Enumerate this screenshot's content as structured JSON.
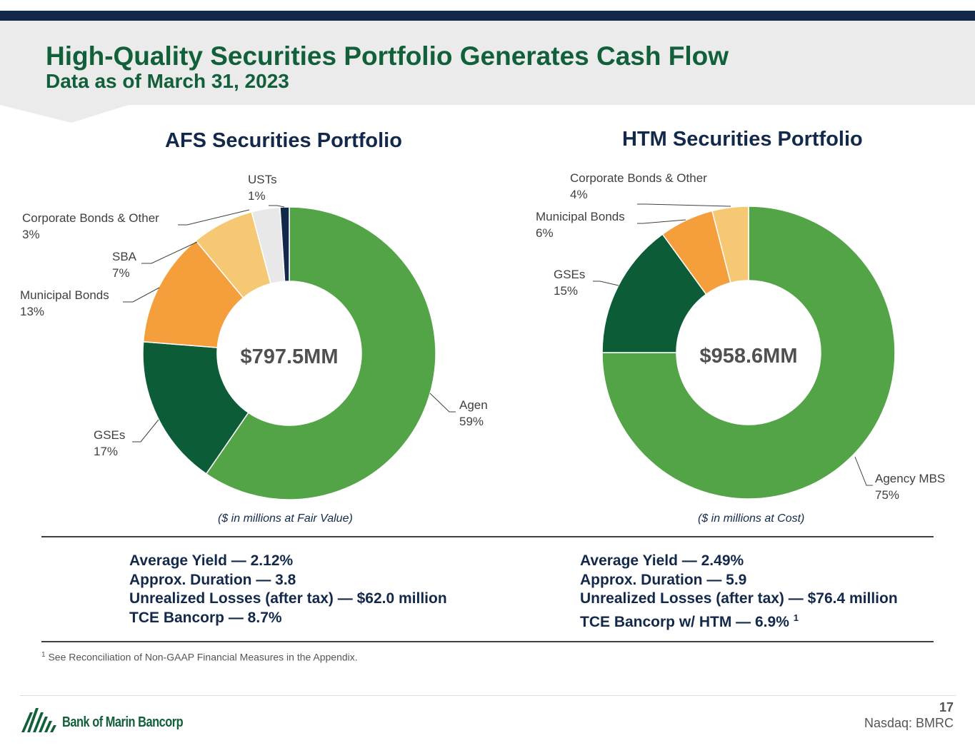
{
  "slide": {
    "title": "High-Quality Securities Portfolio Generates Cash Flow",
    "subtitle": "Data as of March 31, 2023",
    "page_number": "17",
    "ticker": "Nasdaq: BMRC",
    "logo_text": "Bank of Marin Bancorp",
    "footnote_marker": "1",
    "footnote": "See Reconciliation of Non-GAAP Financial Measures in the Appendix."
  },
  "colors": {
    "agency_mbs": "#52a447",
    "gses": "#0c5c38",
    "municipal_bonds": "#f59e3c",
    "sba": "#f7c873",
    "corporate_bonds": "#f7c873",
    "usts_light": "#e8e8e8",
    "usts_dark": "#13294b",
    "title_green": "#11603a",
    "navy": "#13294b"
  },
  "chart_data": [
    {
      "type": "pie",
      "title": "AFS Securities Portfolio",
      "center_label": "$797.5MM",
      "note": "($ in millions at Fair Value)",
      "slices": [
        {
          "label": "Agency MBS",
          "pct_label": "59%",
          "value": 59.0,
          "color": "#52a447"
        },
        {
          "label": "GSEs",
          "pct_label": "17%",
          "value": 16.5,
          "color": "#0c5c38"
        },
        {
          "label": "Municipal Bonds",
          "pct_label": "13%",
          "value": 12.6,
          "color": "#f59e3c"
        },
        {
          "label": "SBA",
          "pct_label": "7%",
          "value": 6.8,
          "color": "#f7c873"
        },
        {
          "label": "Corporate Bonds & Other",
          "pct_label": "3%",
          "value": 3.1,
          "color": "#e8e8e8"
        },
        {
          "label": "USTs",
          "pct_label": "1%",
          "value": 1.0,
          "color": "#13294b"
        }
      ]
    },
    {
      "type": "pie",
      "title": "HTM Securities Portfolio",
      "center_label": "$958.6MM",
      "note": "($ in millions at Cost)",
      "slices": [
        {
          "label": "Agency MBS",
          "pct_label": "75%",
          "value": 75,
          "color": "#52a447"
        },
        {
          "label": "GSEs",
          "pct_label": "15%",
          "value": 15,
          "color": "#0c5c38"
        },
        {
          "label": "Municipal Bonds",
          "pct_label": "6%",
          "value": 6,
          "color": "#f59e3c"
        },
        {
          "label": "Corporate Bonds & Other",
          "pct_label": "4%",
          "value": 4,
          "color": "#f7c873"
        }
      ]
    }
  ],
  "metrics": {
    "afs": [
      "Average Yield — 2.12%",
      "Approx. Duration — 3.8",
      "Unrealized Losses (after tax) — $62.0 million",
      "TCE Bancorp — 8.7%"
    ],
    "htm": [
      "Average Yield — 2.49%",
      "Approx. Duration — 5.9",
      "Unrealized Losses (after tax) — $76.4 million",
      "TCE Bancorp w/ HTM — 6.9%"
    ],
    "htm_last_marker": "1"
  }
}
